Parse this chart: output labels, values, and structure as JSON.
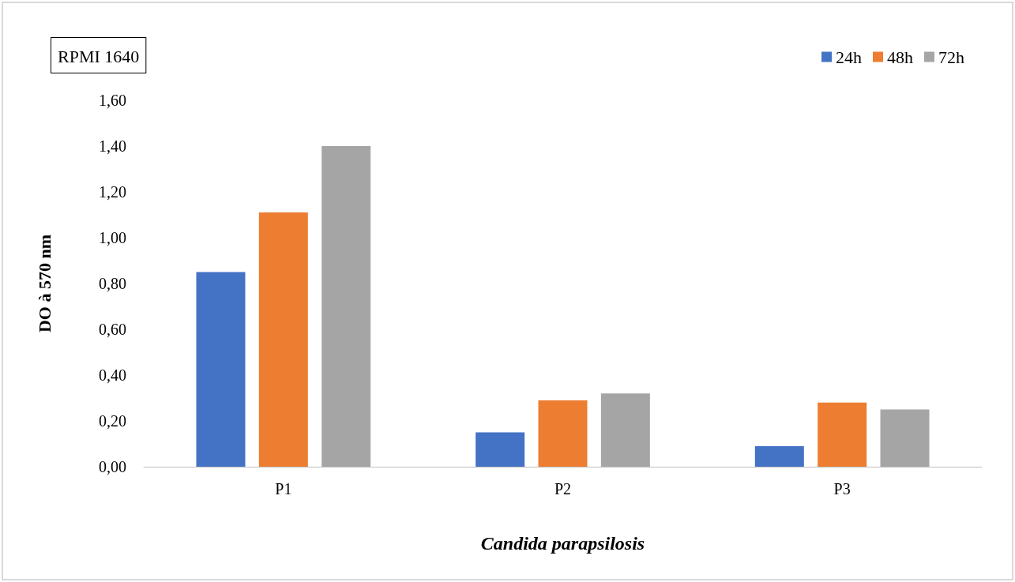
{
  "chart_data": {
    "type": "bar",
    "annotations": [
      "RPMI 1640"
    ],
    "xlabel": "Candida parapsilosis",
    "ylabel": "DO à 570 nm",
    "categories": [
      "P1",
      "P2",
      "P3"
    ],
    "series": [
      {
        "name": "24h",
        "color": "#4472c4",
        "values": [
          0.85,
          0.15,
          0.09
        ]
      },
      {
        "name": "48h",
        "color": "#ed7d31",
        "values": [
          1.11,
          0.29,
          0.28
        ]
      },
      {
        "name": "72h",
        "color": "#a5a5a5",
        "values": [
          1.4,
          0.32,
          0.25
        ]
      }
    ],
    "ylim": [
      0,
      1.6
    ],
    "yticks": [
      {
        "value": 0,
        "label": "0,00"
      },
      {
        "value": 0.2,
        "label": "0,20"
      },
      {
        "value": 0.4,
        "label": "0,40"
      },
      {
        "value": 0.6,
        "label": "0,60"
      },
      {
        "value": 0.8,
        "label": "0,80"
      },
      {
        "value": 1,
        "label": "1,00"
      },
      {
        "value": 1.2,
        "label": "1,20"
      },
      {
        "value": 1.4,
        "label": "1,40"
      },
      {
        "value": 1.6,
        "label": "1,60"
      }
    ],
    "grid": false,
    "legend": "top right"
  }
}
